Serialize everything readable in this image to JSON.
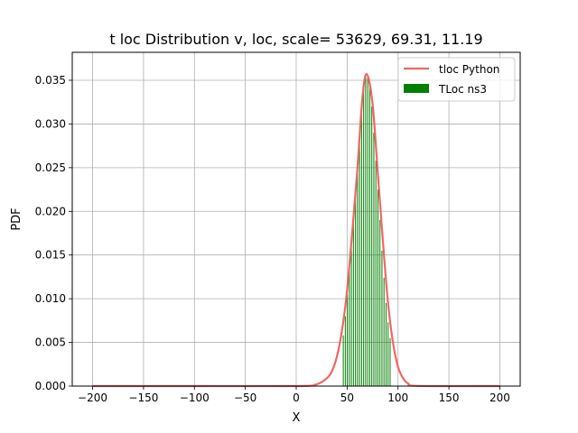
{
  "chart_data": {
    "type": "line",
    "title": "t loc Distribution v, loc, scale= 53629, 69.31, 11.19",
    "xlabel": "X",
    "ylabel": "PDF",
    "xlim": [
      -220,
      220
    ],
    "ylim": [
      0,
      0.0382
    ],
    "xticks": [
      -200,
      -150,
      -100,
      -50,
      0,
      50,
      100,
      150,
      200
    ],
    "xtick_labels": [
      "−200",
      "−150",
      "−100",
      "−50",
      "0",
      "50",
      "100",
      "150",
      "200"
    ],
    "yticks": [
      0,
      0.005,
      0.01,
      0.015,
      0.02,
      0.025,
      0.03,
      0.035
    ],
    "ytick_labels": [
      "0.000",
      "0.005",
      "0.010",
      "0.015",
      "0.020",
      "0.025",
      "0.030",
      "0.035"
    ],
    "grid": true,
    "legend_position": "top-right",
    "series": [
      {
        "name": "tloc Python",
        "kind": "line",
        "color": "#f06666",
        "x": [
          -200,
          -100,
          0,
          20,
          30,
          35,
          40,
          45,
          50,
          55,
          60,
          65,
          69.31,
          75,
          80,
          85,
          90,
          95,
          100,
          105,
          110,
          120,
          200
        ],
        "y": [
          0,
          0,
          0,
          0.0002,
          0.0009,
          0.0017,
          0.0034,
          0.0064,
          0.011,
          0.0176,
          0.0247,
          0.033,
          0.0357,
          0.0323,
          0.0246,
          0.0168,
          0.0097,
          0.005,
          0.0022,
          0.0009,
          0.0003,
          2e-05,
          0
        ]
      },
      {
        "name": "TLoc ns3",
        "kind": "bar",
        "color": "#008000",
        "bin_width": 0.45,
        "x": [
          46,
          48,
          50,
          52,
          54,
          56,
          58,
          60,
          62,
          64,
          66,
          68,
          70,
          72,
          74,
          76,
          78,
          80,
          82,
          84,
          86,
          88,
          90,
          92
        ],
        "y": [
          0.0058,
          0.008,
          0.0105,
          0.0132,
          0.016,
          0.019,
          0.0225,
          0.0255,
          0.029,
          0.0318,
          0.034,
          0.0355,
          0.0356,
          0.0345,
          0.032,
          0.029,
          0.0258,
          0.0225,
          0.019,
          0.0155,
          0.0124,
          0.0095,
          0.0073,
          0.0055
        ]
      }
    ]
  }
}
